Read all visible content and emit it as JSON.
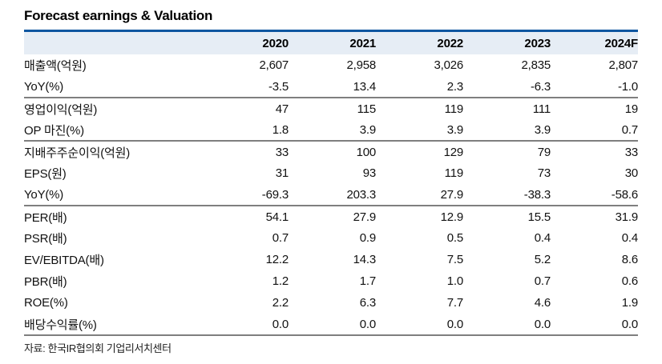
{
  "title": "Forecast earnings & Valuation",
  "source": "자료: 한국IR협의회 기업리서치센터",
  "colors": {
    "accent_line": "#0e56a0",
    "header_bg": "#e6edf5",
    "group_separator": "#7f7f7f",
    "text": "#111111"
  },
  "chart_data": {
    "type": "table",
    "title": "Forecast earnings & Valuation",
    "columns": [
      "",
      "2020",
      "2021",
      "2022",
      "2023",
      "2024F"
    ],
    "rows": [
      {
        "label": "매출액(억원)",
        "values": [
          "2,607",
          "2,958",
          "3,026",
          "2,835",
          "2,807"
        ],
        "group_end": false
      },
      {
        "label": "YoY(%)",
        "values": [
          "-3.5",
          "13.4",
          "2.3",
          "-6.3",
          "-1.0"
        ],
        "group_end": true
      },
      {
        "label": "영업이익(억원)",
        "values": [
          "47",
          "115",
          "119",
          "111",
          "19"
        ],
        "group_end": false
      },
      {
        "label": "OP 마진(%)",
        "values": [
          "1.8",
          "3.9",
          "3.9",
          "3.9",
          "0.7"
        ],
        "group_end": true
      },
      {
        "label": "지배주주순이익(억원)",
        "values": [
          "33",
          "100",
          "129",
          "79",
          "33"
        ],
        "group_end": false
      },
      {
        "label": "EPS(원)",
        "values": [
          "31",
          "93",
          "119",
          "73",
          "30"
        ],
        "group_end": false
      },
      {
        "label": "YoY(%)",
        "values": [
          "-69.3",
          "203.3",
          "27.9",
          "-38.3",
          "-58.6"
        ],
        "group_end": true
      },
      {
        "label": "PER(배)",
        "values": [
          "54.1",
          "27.9",
          "12.9",
          "15.5",
          "31.9"
        ],
        "group_end": false
      },
      {
        "label": "PSR(배)",
        "values": [
          "0.7",
          "0.9",
          "0.5",
          "0.4",
          "0.4"
        ],
        "group_end": false
      },
      {
        "label": "EV/EBITDA(배)",
        "values": [
          "12.2",
          "14.3",
          "7.5",
          "5.2",
          "8.6"
        ],
        "group_end": false
      },
      {
        "label": "PBR(배)",
        "values": [
          "1.2",
          "1.7",
          "1.0",
          "0.7",
          "0.6"
        ],
        "group_end": false
      },
      {
        "label": "ROE(%)",
        "values": [
          "2.2",
          "6.3",
          "7.7",
          "4.6",
          "1.9"
        ],
        "group_end": false
      },
      {
        "label": "배당수익률(%)",
        "values": [
          "0.0",
          "0.0",
          "0.0",
          "0.0",
          "0.0"
        ],
        "group_end": true
      }
    ],
    "source": "자료: 한국IR협의회 기업리서치센터"
  }
}
